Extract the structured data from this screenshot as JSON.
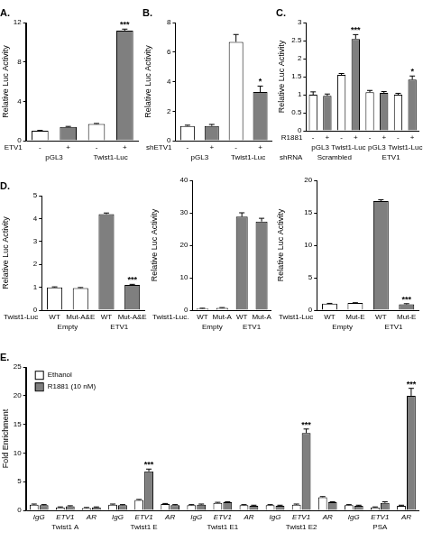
{
  "chart_data": [
    {
      "type": "bar",
      "title": "A.",
      "y_label": "Relative Luc Activity",
      "x_label": "ETV1",
      "categories": [
        "-",
        "+",
        "-",
        "+"
      ],
      "groups": [
        {
          "items": [
            "pGL3",
            "Twist1-Luc"
          ]
        }
      ],
      "values": [
        1.0,
        1.4,
        1.7,
        11.2
      ],
      "errors": [
        0.05,
        0.05,
        0.05,
        0.15
      ],
      "significance": [
        null,
        null,
        null,
        "***"
      ],
      "colors": [
        "#ffffff",
        "#7f7f7f",
        "#ffffff",
        "#7f7f7f"
      ],
      "ylim": [
        0,
        12
      ],
      "yticks": [
        0,
        4,
        8,
        12
      ]
    },
    {
      "type": "bar",
      "title": "B.",
      "y_label": "Relative Luc Activity",
      "x_label": "shETV1",
      "categories": [
        "-",
        "+",
        "-",
        "+"
      ],
      "groups": [
        {
          "items": [
            "pGL3",
            "Twist1-Luc"
          ]
        }
      ],
      "values": [
        1.0,
        1.0,
        6.7,
        3.3
      ],
      "errors": [
        0.05,
        0.1,
        0.5,
        0.4
      ],
      "significance": [
        null,
        null,
        null,
        "*"
      ],
      "colors": [
        "#ffffff",
        "#7f7f7f",
        "#ffffff",
        "#7f7f7f"
      ],
      "ylim": [
        0,
        8
      ],
      "yticks": [
        0,
        2,
        4,
        6,
        8
      ]
    },
    {
      "type": "bar",
      "title": "C.",
      "y_label": "Relative Luc Activity",
      "x_label": "R1881",
      "categories": [
        "-",
        "+",
        "-",
        "+",
        "-",
        "+",
        "-",
        "+"
      ],
      "groups": [
        {
          "items": [
            "pGL3",
            "Twist1-Luc",
            "pGL3",
            "Twist1-Luc"
          ]
        },
        {
          "label": "shRNA",
          "items": [
            "Scrambled",
            "ETV1"
          ]
        }
      ],
      "values": [
        1.0,
        0.97,
        1.55,
        2.55,
        1.07,
        1.05,
        1.0,
        1.42
      ],
      "errors": [
        0.08,
        0.05,
        0.04,
        0.12,
        0.05,
        0.04,
        0.04,
        0.1
      ],
      "significance": [
        null,
        null,
        null,
        "***",
        null,
        null,
        null,
        "*"
      ],
      "colors": [
        "#ffffff",
        "#7f7f7f",
        "#ffffff",
        "#7f7f7f",
        "#ffffff",
        "#7f7f7f",
        "#ffffff",
        "#7f7f7f"
      ],
      "ylim": [
        0,
        3
      ],
      "yticks": [
        0,
        0.5,
        1,
        1.5,
        2,
        2.5,
        3
      ]
    },
    {
      "type": "bar",
      "title": "D.",
      "y_label": "Relative Luc Activity",
      "x_label": "Twist1-Luc",
      "categories": [
        "WT",
        "Mut-A&E",
        "WT",
        "Mut-A&E"
      ],
      "groups": [
        {
          "items": [
            "Empty",
            "ETV1"
          ]
        }
      ],
      "values": [
        1.0,
        0.97,
        4.2,
        1.1
      ],
      "errors": [
        0.02,
        0.02,
        0.05,
        0.03
      ],
      "significance": [
        null,
        null,
        null,
        "***"
      ],
      "colors": [
        "#ffffff",
        "#ffffff",
        "#7f7f7f",
        "#7f7f7f"
      ],
      "ylim": [
        0,
        5
      ],
      "yticks": [
        0,
        1,
        2,
        3,
        4,
        5
      ]
    },
    {
      "type": "bar",
      "y_label": "Relative Luc Activity",
      "x_label": "Twist1-Luc.",
      "categories": [
        "WT",
        "Mut-A",
        "WT",
        "Mut-A"
      ],
      "groups": [
        {
          "items": [
            "Empty",
            "ETV1"
          ]
        }
      ],
      "values": [
        0.5,
        0.7,
        28.8,
        27.3
      ],
      "errors": [
        0.1,
        0.1,
        1.2,
        1.0
      ],
      "colors": [
        "#ffffff",
        "#ffffff",
        "#7f7f7f",
        "#7f7f7f"
      ],
      "ylim": [
        0,
        40
      ],
      "yticks": [
        0,
        10,
        20,
        30,
        40
      ]
    },
    {
      "type": "bar",
      "y_label": "Relative Luc Activity",
      "x_label": "Twist1-Luc",
      "categories": [
        "WT",
        "Mut-E",
        "WT",
        "Mut-E"
      ],
      "groups": [
        {
          "items": [
            "Empty",
            "ETV1"
          ]
        }
      ],
      "values": [
        1.0,
        1.1,
        16.8,
        0.9
      ],
      "errors": [
        0.05,
        0.05,
        0.2,
        0.1
      ],
      "significance": [
        null,
        null,
        null,
        "***"
      ],
      "colors": [
        "#ffffff",
        "#ffffff",
        "#7f7f7f",
        "#7f7f7f"
      ],
      "ylim": [
        0,
        20
      ],
      "yticks": [
        0,
        5,
        10,
        15,
        20
      ]
    },
    {
      "type": "bar",
      "title": "E.",
      "y_label": "Fold Enrichment",
      "legend": "top-left",
      "categories": [
        "IgG",
        "ETV1",
        "AR",
        "IgG",
        "ETV1",
        "AR",
        "IgG",
        "ETV1",
        "AR",
        "IgG",
        "ETV1",
        "AR",
        "IgG",
        "ETV1",
        "AR"
      ],
      "groups": [
        {
          "items": [
            "Twist1 A",
            "Twist1 E",
            "Twist1 E1",
            "Twist1 E2",
            "PSA"
          ]
        }
      ],
      "series": [
        {
          "name": "Ethanol",
          "color": "#ffffff",
          "values": [
            1.0,
            0.5,
            0.4,
            1.0,
            1.8,
            1.1,
            0.9,
            1.3,
            0.9,
            0.9,
            1.0,
            2.3,
            0.9,
            0.5,
            0.8
          ],
          "errors": [
            0.1,
            0.1,
            0.1,
            0.1,
            0.1,
            0.1,
            0.1,
            0.1,
            0.1,
            0.1,
            0.1,
            0.1,
            0.1,
            0.1,
            0.1
          ]
        },
        {
          "name": "R1881 (10 nM)",
          "color": "#7f7f7f",
          "values": [
            0.9,
            0.7,
            0.5,
            0.9,
            6.8,
            0.9,
            1.0,
            1.4,
            0.8,
            0.8,
            13.5,
            1.4,
            0.8,
            1.3,
            20.0
          ],
          "errors": [
            0.1,
            0.1,
            0.1,
            0.1,
            0.4,
            0.1,
            0.1,
            0.1,
            0.1,
            0.1,
            0.7,
            0.1,
            0.1,
            0.2,
            1.3
          ],
          "significance": [
            null,
            null,
            null,
            null,
            "***",
            null,
            null,
            null,
            null,
            null,
            "***",
            null,
            null,
            null,
            "***"
          ]
        }
      ],
      "ylim": [
        0,
        25
      ],
      "yticks": [
        0,
        5,
        10,
        15,
        20,
        25
      ]
    }
  ]
}
